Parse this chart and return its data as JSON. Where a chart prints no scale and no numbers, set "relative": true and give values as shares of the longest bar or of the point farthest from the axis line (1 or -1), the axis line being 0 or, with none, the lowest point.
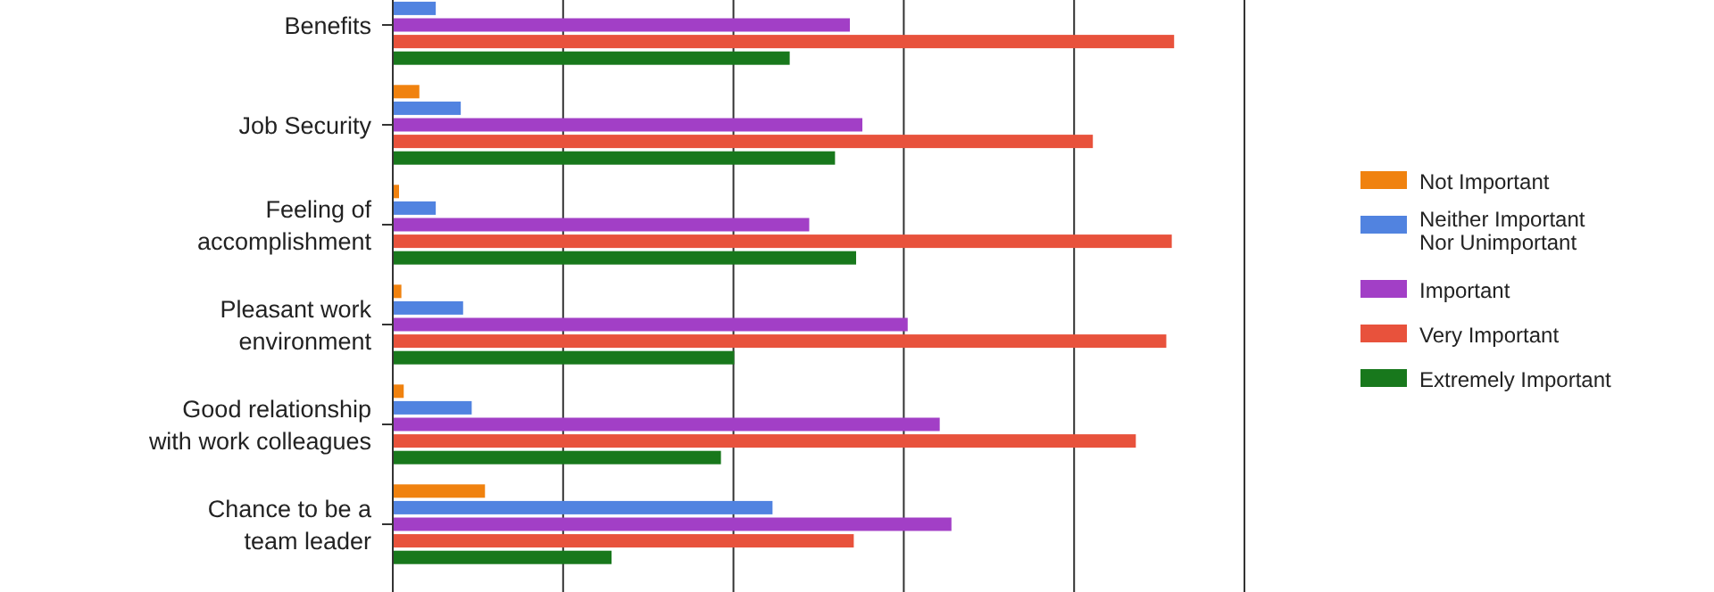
{
  "chart_data": {
    "type": "bar",
    "orientation": "horizontal",
    "relative": true,
    "grid": "x",
    "legend": "right",
    "categories": [
      "Benefits",
      "Job Security",
      "Feeling of accomplishment",
      "Pleasant work environment",
      "Good relationship with work colleagues",
      "Chance to be a team leader"
    ],
    "series": [
      {
        "name": "Not Important",
        "color": "#f0820f",
        "values": [
          null,
          0.034,
          0.008,
          0.011,
          0.014,
          0.118
        ]
      },
      {
        "name": "Neither Important Nor Unimportant",
        "color": "#5183e0",
        "values": [
          0.055,
          0.087,
          0.055,
          0.09,
          0.101,
          0.486
        ]
      },
      {
        "name": "Important",
        "color": "#a23fc6",
        "values": [
          0.585,
          0.601,
          0.533,
          0.659,
          0.7,
          0.715
        ]
      },
      {
        "name": "Very Important",
        "color": "#e8523c",
        "values": [
          1,
          0.896,
          0.997,
          0.99,
          0.951,
          0.59
        ]
      },
      {
        "name": "Extremely Important",
        "color": "#18781c",
        "values": [
          0.508,
          0.566,
          0.593,
          0.437,
          0.42,
          0.28
        ]
      }
    ]
  }
}
